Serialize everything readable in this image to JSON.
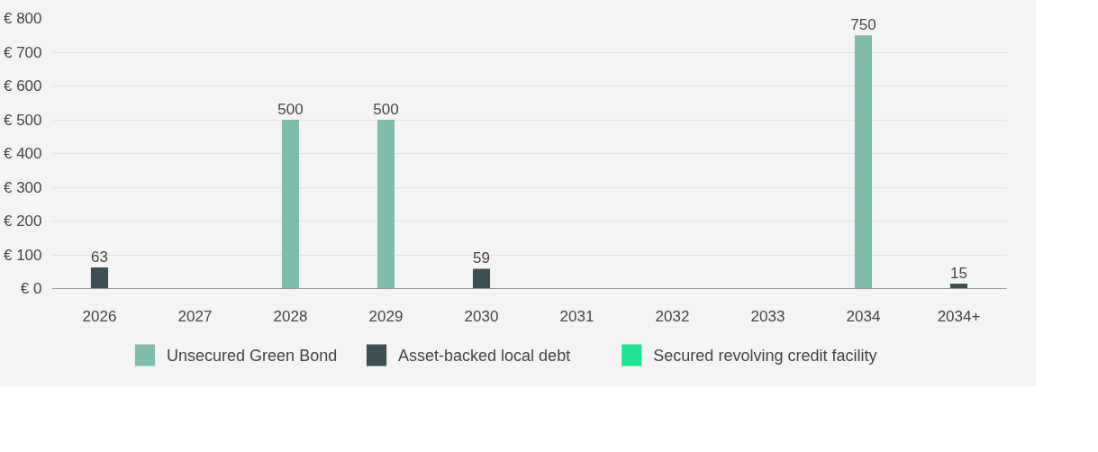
{
  "chart_data": {
    "type": "bar",
    "categories": [
      "2026",
      "2027",
      "2028",
      "2029",
      "2030",
      "2031",
      "2032",
      "2033",
      "2034",
      "2034+"
    ],
    "series": [
      {
        "name": "Unsecured Green Bond",
        "color": "#80bcac",
        "values": [
          0,
          0,
          500,
          500,
          0,
          0,
          0,
          0,
          750,
          0
        ],
        "value_labels": [
          null,
          null,
          "500",
          "500",
          null,
          null,
          null,
          null,
          "750",
          null
        ]
      },
      {
        "name": "Asset-backed local debt",
        "color": "#3e4f53",
        "values": [
          63,
          0,
          0,
          0,
          59,
          0,
          0,
          0,
          0,
          15
        ],
        "value_labels": [
          "63",
          null,
          null,
          null,
          "59",
          null,
          null,
          null,
          null,
          "15"
        ]
      },
      {
        "name": "Secured revolving credit facility",
        "color": "#1de490",
        "values": [
          0,
          0,
          0,
          0,
          0,
          0,
          0,
          0,
          0,
          0
        ]
      }
    ],
    "ylim": [
      0,
      800
    ],
    "yticks": [
      {
        "value": 0,
        "label": "€ 0"
      },
      {
        "value": 100,
        "label": "€ 100"
      },
      {
        "value": 200,
        "label": "€ 200"
      },
      {
        "value": 300,
        "label": "€ 300"
      },
      {
        "value": 400,
        "label": "€ 400"
      },
      {
        "value": 500,
        "label": "€ 500"
      },
      {
        "value": 600,
        "label": "€ 600"
      },
      {
        "value": 700,
        "label": "€ 700"
      },
      {
        "value": 800,
        "label": "€ 800"
      }
    ],
    "grid": "y",
    "legend": "bottom"
  }
}
